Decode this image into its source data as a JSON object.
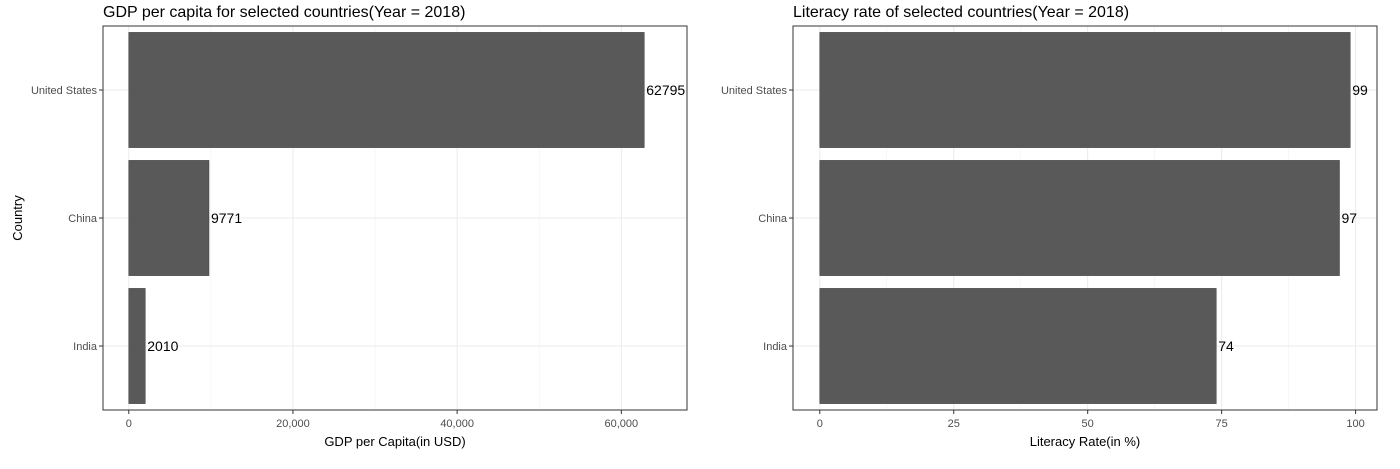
{
  "chart_data": [
    {
      "type": "bar",
      "orientation": "horizontal",
      "title": "GDP per capita for selected countries(Year = 2018)",
      "xlabel": "GDP per Capita(in USD)",
      "ylabel": "Country",
      "categories": [
        "United States",
        "China",
        "India"
      ],
      "values": [
        62795,
        9771,
        2010
      ],
      "value_labels": [
        "62795",
        "9771",
        "2010"
      ],
      "xlim": [
        -3140,
        68000
      ],
      "xticks": [
        0,
        20000,
        40000,
        60000
      ],
      "xtick_labels": [
        "0",
        "20,000",
        "40,000",
        "60,000"
      ],
      "bar_color": "#595959",
      "grid": true
    },
    {
      "type": "bar",
      "orientation": "horizontal",
      "title": "Literacy rate of selected countries(Year = 2018)",
      "xlabel": "Literacy Rate(in %)",
      "ylabel": "",
      "categories": [
        "United States",
        "China",
        "India"
      ],
      "values": [
        99,
        97,
        74
      ],
      "value_labels": [
        "99",
        "97",
        "74"
      ],
      "xlim": [
        -5,
        104
      ],
      "xticks": [
        0,
        25,
        50,
        75,
        100
      ],
      "xtick_labels": [
        "0",
        "25",
        "50",
        "75",
        "100"
      ],
      "bar_color": "#595959",
      "grid": true
    }
  ]
}
